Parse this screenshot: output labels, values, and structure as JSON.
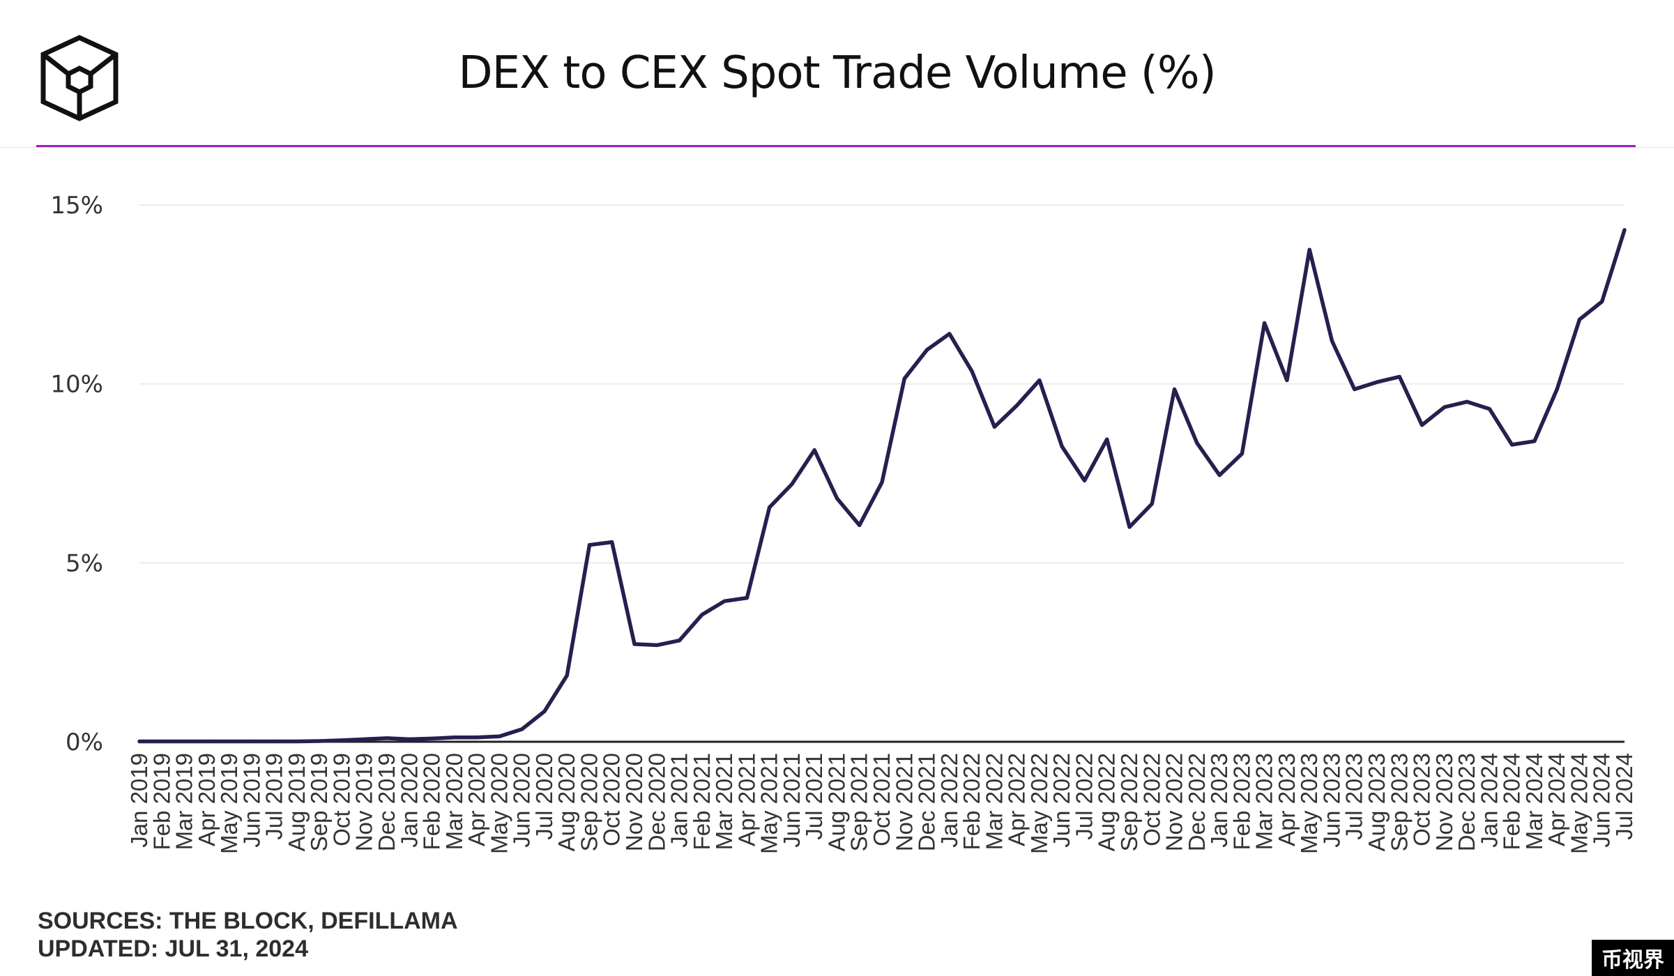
{
  "header": {
    "title": "DEX to CEX Spot Trade Volume (%)",
    "logo_icon": "the-block-cube-icon"
  },
  "footer": {
    "sources": "SOURCES: THE BLOCK, DEFILLAMA",
    "updated": "UPDATED: JUL 31, 2024"
  },
  "watermark": "币视界",
  "colors": {
    "line": "#25204f",
    "accent": "#9b1fb8",
    "grid": "#ebebeb",
    "axis": "#222222"
  },
  "chart_data": {
    "type": "line",
    "title": "DEX to CEX Spot Trade Volume (%)",
    "xlabel": "",
    "ylabel": "",
    "ylim": [
      0,
      15
    ],
    "y_ticks": [
      0,
      5,
      10,
      15
    ],
    "y_tick_labels": [
      "0%",
      "5%",
      "10%",
      "15%"
    ],
    "grid": true,
    "legend": "none",
    "categories": [
      "Jan 2019",
      "Feb 2019",
      "Mar 2019",
      "Apr 2019",
      "May 2019",
      "Jun 2019",
      "Jul 2019",
      "Aug 2019",
      "Sep 2019",
      "Oct 2019",
      "Nov 2019",
      "Dec 2019",
      "Jan 2020",
      "Feb 2020",
      "Mar 2020",
      "Apr 2020",
      "May 2020",
      "Jun 2020",
      "Jul 2020",
      "Aug 2020",
      "Sep 2020",
      "Oct 2020",
      "Nov 2020",
      "Dec 2020",
      "Jan 2021",
      "Feb 2021",
      "Mar 2021",
      "Apr 2021",
      "May 2021",
      "Jun 2021",
      "Jul 2021",
      "Aug 2021",
      "Sep 2021",
      "Oct 2021",
      "Nov 2021",
      "Dec 2021",
      "Jan 2022",
      "Feb 2022",
      "Mar 2022",
      "Apr 2022",
      "May 2022",
      "Jun 2022",
      "Jul 2022",
      "Aug 2022",
      "Sep 2022",
      "Oct 2022",
      "Nov 2022",
      "Dec 2022",
      "Jan 2023",
      "Feb 2023",
      "Mar 2023",
      "Apr 2023",
      "May 2023",
      "Jun 2023",
      "Jul 2023",
      "Aug 2023",
      "Sep 2023",
      "Oct 2023",
      "Nov 2023",
      "Dec 2023",
      "Jan 2024",
      "Feb 2024",
      "Mar 2024",
      "Apr 2024",
      "May 2024",
      "Jun 2024",
      "Jul 2024"
    ],
    "series": [
      {
        "values": [
          0.01,
          0.01,
          0.01,
          0.01,
          0.01,
          0.01,
          0.01,
          0.01,
          0.02,
          0.04,
          0.07,
          0.1,
          0.07,
          0.09,
          0.12,
          0.12,
          0.15,
          0.35,
          0.85,
          1.85,
          5.5,
          5.58,
          2.73,
          2.7,
          2.83,
          3.55,
          3.93,
          4.02,
          6.55,
          7.2,
          8.15,
          6.8,
          6.05,
          7.25,
          10.15,
          10.95,
          11.4,
          10.35,
          8.8,
          9.4,
          10.1,
          8.25,
          7.3,
          8.45,
          6.0,
          6.65,
          9.85,
          8.35,
          7.45,
          8.05,
          11.7,
          10.1,
          13.75,
          11.2,
          9.85,
          10.05,
          10.2,
          8.85,
          9.35,
          9.5,
          9.3,
          8.3,
          8.4,
          9.85,
          11.8,
          12.3,
          14.3
        ]
      }
    ]
  }
}
